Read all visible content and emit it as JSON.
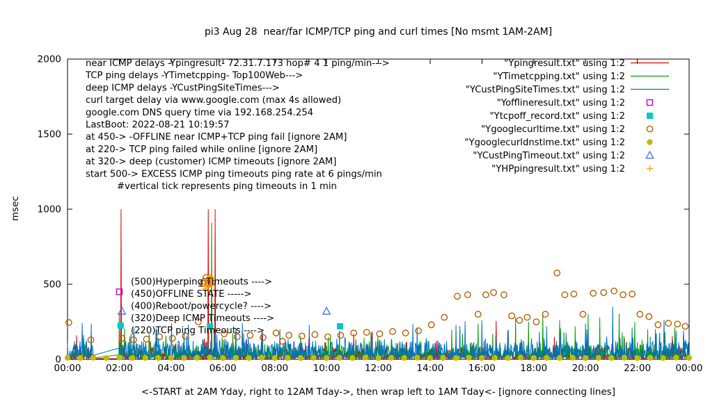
{
  "title": "pi3 Aug 28  near/far ICMP/TCP ping and curl times [No msmt 1AM-2AM]",
  "ylabel": "msec",
  "xlabel": "<-START at 2AM Yday, right to 12AM Tday->, then wrap left to 1AM Tday<- [ignore connecting lines]",
  "annotations": {
    "info_lines": [
      "near ICMP delays -Ypingresult- 72.31.7.173 hop# 4 1 ping/min--->",
      "TCP ping delays -YTimetcpping- Top100Web--->",
      "deep ICMP delays -YCustPingSiteTimes--->",
      "curl target delay via www.google.com (max 4s allowed)",
      "google.com DNS query time via 192.168.254.254",
      "LastBoot: 2022-08-21 10:19:57",
      "at 450-> -OFFLINE near ICMP+TCP ping fail [ignore 2AM]",
      "at 220-> TCP ping failed while online [ignore 2AM]",
      "at 320-> deep (customer) ICMP timeouts [ignore 2AM]",
      "start 500-> EXCESS ICMP ping timeouts ping rate at 6 pings/min",
      "#vertical tick represents ping timeouts in 1 min"
    ],
    "level_labels": [
      "(500)Hyperping Timeouts ---->",
      "(450)OFFLINE STATE ----->",
      "(400)Reboot/powercycle? ---->",
      "(320)Deep ICMP Timeouts ---->",
      "(220)TCP ping Timeouts ---->"
    ]
  },
  "chart_data": {
    "type": "line",
    "x_axis": {
      "unit": "time-of-day",
      "range_hours": [
        0,
        24
      ],
      "ticks": [
        "00:00",
        "02:00",
        "04:00",
        "06:00",
        "08:00",
        "10:00",
        "12:00",
        "14:00",
        "16:00",
        "18:00",
        "20:00",
        "22:00",
        "00:00"
      ]
    },
    "y_axis": {
      "label": "msec",
      "range": [
        0,
        2000
      ],
      "ticks": [
        0,
        500,
        1000,
        1500,
        2000
      ]
    },
    "no_measurement_gap_hours": [
      1,
      2
    ],
    "series": [
      {
        "key": "ypingresult",
        "label": "\"Ypingresult.txt\" using 1:2",
        "style": "line",
        "color": "#dd0000",
        "seed": 101,
        "baseline": {
          "base": 3,
          "jitter": 80,
          "skew": 2.8,
          "spike_prob": 0.045,
          "spike_amp": 130
        },
        "events": [
          [
            0.35,
            160
          ],
          [
            2.07,
            1000
          ],
          [
            3.2,
            120
          ],
          [
            5.43,
            1000
          ],
          [
            5.7,
            1000
          ],
          [
            7.5,
            185
          ],
          [
            11.05,
            170
          ],
          [
            14.3,
            125
          ],
          [
            16.55,
            255
          ],
          [
            17.0,
            190
          ],
          [
            18.8,
            150
          ],
          [
            21.5,
            140
          ],
          [
            23.35,
            155
          ]
        ]
      },
      {
        "key": "ytimetcpping",
        "label": "\"YTimetcpping.txt\" using 1:2",
        "style": "line",
        "color": "#00a000",
        "seed": 202,
        "baseline": {
          "base": 6,
          "jitter": 95,
          "skew": 2.4,
          "spike_prob": 0.06,
          "spike_amp": 150
        },
        "events": [
          [
            2.0,
            310
          ],
          [
            5.56,
            910
          ],
          [
            6.5,
            200
          ],
          [
            9.0,
            155
          ],
          [
            12.5,
            130
          ],
          [
            17.3,
            280
          ],
          [
            17.8,
            250
          ],
          [
            18.35,
            305
          ],
          [
            19.0,
            260
          ],
          [
            19.6,
            220
          ],
          [
            20.1,
            300
          ],
          [
            20.55,
            280
          ],
          [
            21.3,
            305
          ],
          [
            21.9,
            250
          ],
          [
            22.4,
            200
          ]
        ]
      },
      {
        "key": "ycustpingsitetimes",
        "label": "\"YCustPingSiteTimes.txt\" using 1:2",
        "style": "line",
        "color": "#0070c0",
        "seed": 303,
        "baseline": {
          "base": 8,
          "jitter": 115,
          "skew": 2.1,
          "spike_prob": 0.08,
          "spike_amp": 150
        },
        "events": [
          [
            4.5,
            180
          ],
          [
            8.2,
            200
          ],
          [
            10.5,
            190
          ],
          [
            13.5,
            210
          ],
          [
            15.0,
            230
          ],
          [
            16.0,
            260
          ],
          [
            18.5,
            220
          ],
          [
            20.0,
            240
          ],
          [
            21.05,
            350
          ],
          [
            22.7,
            200
          ],
          [
            23.5,
            190
          ]
        ]
      },
      {
        "key": "yofflineresult",
        "label": "\"Yofflineresult.txt\" using 1:2",
        "style": "square-open",
        "color": "#c000c0",
        "points": [
          [
            2.0,
            450
          ]
        ]
      },
      {
        "key": "ytcpoff_record",
        "label": "\"Ytcpoff_record.txt\" using 1:2",
        "style": "square-filled",
        "color": "#00c8c8",
        "points": [
          [
            2.05,
            225
          ],
          [
            5.5,
            218
          ],
          [
            10.52,
            220
          ]
        ]
      },
      {
        "key": "ygooglecurltime",
        "label": "\"Ygooglecurltime.txt\" using 1:2",
        "style": "circle-open",
        "color": "#b85c00",
        "points": [
          [
            0.05,
            245
          ],
          [
            0.9,
            130
          ],
          [
            2.1,
            140
          ],
          [
            2.55,
            130
          ],
          [
            3.05,
            135
          ],
          [
            3.55,
            150
          ],
          [
            4.05,
            140
          ],
          [
            4.55,
            155
          ],
          [
            5.05,
            250
          ],
          [
            5.22,
            505
          ],
          [
            5.28,
            520
          ],
          [
            5.35,
            545
          ],
          [
            5.42,
            500
          ],
          [
            5.5,
            530
          ],
          [
            5.58,
            512
          ],
          [
            6.05,
            170
          ],
          [
            6.55,
            150
          ],
          [
            7.05,
            160
          ],
          [
            7.55,
            145
          ],
          [
            8.05,
            175
          ],
          [
            8.3,
            120
          ],
          [
            8.55,
            160
          ],
          [
            9.05,
            155
          ],
          [
            9.55,
            165
          ],
          [
            10.05,
            150
          ],
          [
            10.55,
            160
          ],
          [
            11.05,
            175
          ],
          [
            11.55,
            180
          ],
          [
            12.05,
            170
          ],
          [
            12.55,
            185
          ],
          [
            13.05,
            175
          ],
          [
            13.55,
            190
          ],
          [
            14.05,
            230
          ],
          [
            14.55,
            280
          ],
          [
            15.05,
            420
          ],
          [
            15.45,
            430
          ],
          [
            15.85,
            300
          ],
          [
            16.15,
            430
          ],
          [
            16.45,
            445
          ],
          [
            16.85,
            430
          ],
          [
            17.15,
            290
          ],
          [
            17.45,
            260
          ],
          [
            17.75,
            280
          ],
          [
            18.1,
            250
          ],
          [
            18.45,
            300
          ],
          [
            18.9,
            575
          ],
          [
            19.2,
            430
          ],
          [
            19.55,
            435
          ],
          [
            19.9,
            300
          ],
          [
            20.3,
            440
          ],
          [
            20.7,
            445
          ],
          [
            21.1,
            455
          ],
          [
            21.45,
            430
          ],
          [
            21.8,
            435
          ],
          [
            22.1,
            300
          ],
          [
            22.45,
            285
          ],
          [
            22.8,
            230
          ],
          [
            23.2,
            240
          ],
          [
            23.55,
            235
          ],
          [
            23.85,
            220
          ]
        ]
      },
      {
        "key": "ygooglecurldnstime",
        "label": "\"Ygooglecurldnstime.txt\" using 1:2",
        "style": "circle-filled",
        "color": "#bdbd00",
        "points": [
          [
            0,
            10
          ],
          [
            0.5,
            9
          ],
          [
            1,
            11
          ],
          [
            1.5,
            9
          ],
          [
            2,
            12
          ],
          [
            2.5,
            9
          ],
          [
            3,
            10
          ],
          [
            3.5,
            9
          ],
          [
            4,
            11
          ],
          [
            4.5,
            9
          ],
          [
            5,
            10
          ],
          [
            5.5,
            12
          ],
          [
            6,
            9
          ],
          [
            6.5,
            10
          ],
          [
            7,
            9
          ],
          [
            7.5,
            11
          ],
          [
            8,
            9
          ],
          [
            8.5,
            10
          ],
          [
            9,
            9
          ],
          [
            9.5,
            11
          ],
          [
            10,
            9
          ],
          [
            10.5,
            10
          ],
          [
            11,
            9
          ],
          [
            11.5,
            12
          ],
          [
            12,
            9
          ],
          [
            12.5,
            10
          ],
          [
            13,
            9
          ],
          [
            13.5,
            11
          ],
          [
            14,
            9
          ],
          [
            14.5,
            10
          ],
          [
            15,
            9
          ],
          [
            15.5,
            11
          ],
          [
            16,
            9
          ],
          [
            16.5,
            10
          ],
          [
            17,
            9
          ],
          [
            17.5,
            12
          ],
          [
            18,
            9
          ],
          [
            18.5,
            10
          ],
          [
            19,
            9
          ],
          [
            19.5,
            11
          ],
          [
            20,
            9
          ],
          [
            20.5,
            10
          ],
          [
            21,
            9
          ],
          [
            21.5,
            11
          ],
          [
            22,
            9
          ],
          [
            22.5,
            10
          ],
          [
            23,
            9
          ],
          [
            23.5,
            11
          ],
          [
            24,
            10
          ]
        ]
      },
      {
        "key": "ycustpingtimeout",
        "label": "\"YCustPingTimeout.txt\" using 1:2",
        "style": "triangle-open",
        "color": "#4169e1",
        "points": [
          [
            2.1,
            320
          ],
          [
            10.0,
            320
          ]
        ]
      },
      {
        "key": "yhppingresult",
        "label": "\"YHPpingresult.txt\" using 1:2",
        "style": "plus",
        "color": "#ffa500",
        "points": [
          [
            5.32,
            470
          ],
          [
            5.38,
            500
          ],
          [
            5.44,
            535
          ],
          [
            5.46,
            480
          ],
          [
            5.5,
            550
          ],
          [
            5.54,
            545
          ],
          [
            5.56,
            505
          ],
          [
            5.62,
            520
          ]
        ]
      }
    ]
  }
}
